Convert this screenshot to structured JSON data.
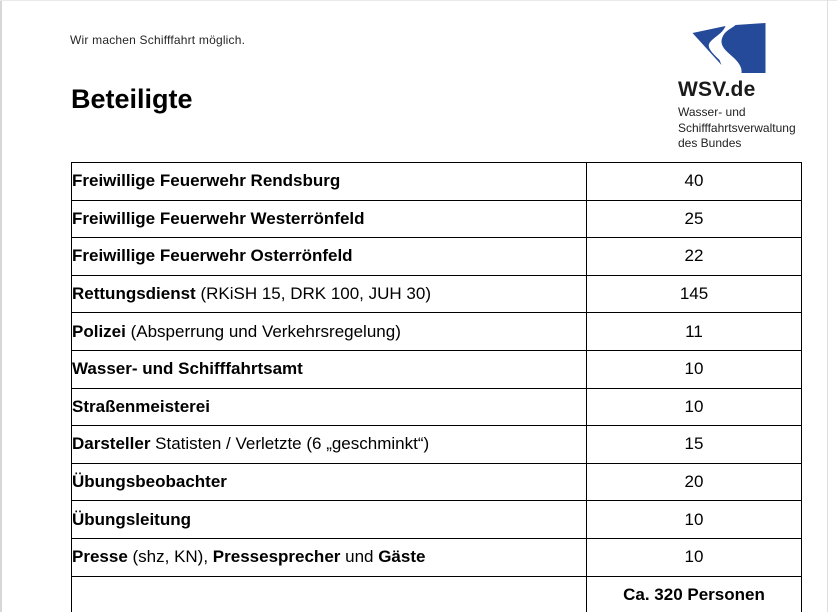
{
  "page": {
    "tagline": "Wir machen Schifffahrt möglich.",
    "title": "Beteiligte"
  },
  "logo": {
    "wordmark": "WSV.de",
    "subline1": "Wasser- und",
    "subline2": "Schifffahrtsverwaltung",
    "subline3": "des Bundes",
    "brand_blue": "#254A99"
  },
  "colors": {
    "brand_blue": "#254A99",
    "text": "#000000",
    "table_border": "#000000"
  },
  "table": {
    "rows": [
      {
        "segments": [
          {
            "text": "Freiwillige Feuerwehr Rendsburg",
            "bold": true
          }
        ],
        "value": "40"
      },
      {
        "segments": [
          {
            "text": "Freiwillige Feuerwehr Westerrönfeld",
            "bold": true
          }
        ],
        "value": "25"
      },
      {
        "segments": [
          {
            "text": "Freiwillige Feuerwehr Osterrönfeld",
            "bold": true
          }
        ],
        "value": "22"
      },
      {
        "segments": [
          {
            "text": "Rettungsdienst",
            "bold": true
          },
          {
            "text": " (RKiSH 15, DRK 100, JUH 30)",
            "bold": false
          }
        ],
        "value": "145"
      },
      {
        "segments": [
          {
            "text": "Polizei",
            "bold": true
          },
          {
            "text": " (Absperrung und Verkehrsregelung)",
            "bold": false
          }
        ],
        "value": "11"
      },
      {
        "segments": [
          {
            "text": "Wasser- und Schifffahrtsamt",
            "bold": true
          }
        ],
        "value": "10"
      },
      {
        "segments": [
          {
            "text": "Straßenmeisterei",
            "bold": true
          }
        ],
        "value": "10"
      },
      {
        "segments": [
          {
            "text": "Darsteller",
            "bold": true
          },
          {
            "text": " Statisten / Verletzte (6 „geschminkt“)",
            "bold": false
          }
        ],
        "value": "15"
      },
      {
        "segments": [
          {
            "text": "Übungsbeobachter",
            "bold": true
          }
        ],
        "value": "20"
      },
      {
        "segments": [
          {
            "text": "Übungsleitung",
            "bold": true
          }
        ],
        "value": "10"
      },
      {
        "segments": [
          {
            "text": "Presse",
            "bold": true
          },
          {
            "text": " (shz, KN), ",
            "bold": false
          },
          {
            "text": "Pressesprecher",
            "bold": true
          },
          {
            "text": " und ",
            "bold": false
          },
          {
            "text": "Gäste",
            "bold": true
          }
        ],
        "value": "10"
      }
    ],
    "total": "Ca. 320 Personen"
  }
}
